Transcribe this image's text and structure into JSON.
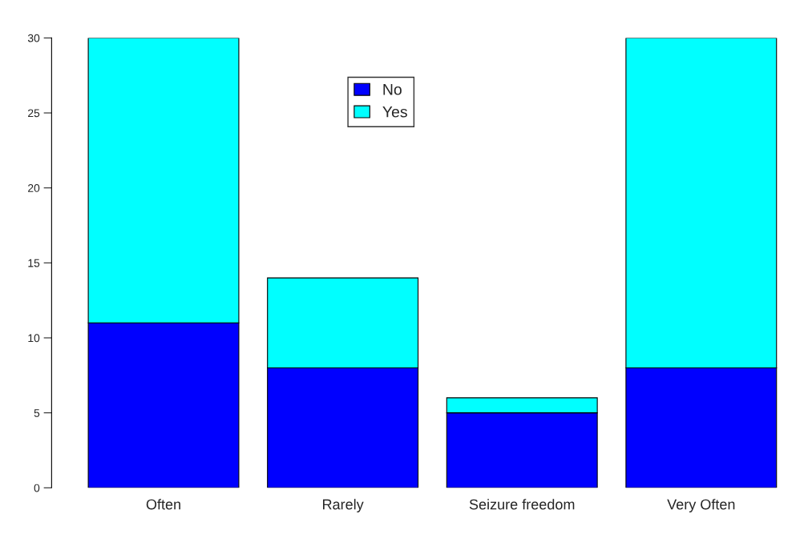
{
  "chart_data": {
    "type": "bar",
    "stacked": true,
    "categories": [
      "Often",
      "Rarely",
      "Seizure freedom",
      "Very Often"
    ],
    "series": [
      {
        "name": "No",
        "color": "#0000ff",
        "values": [
          11,
          8,
          5,
          8
        ]
      },
      {
        "name": "Yes",
        "color": "#00ffff",
        "values": [
          19,
          6,
          1,
          22
        ]
      }
    ],
    "ylim": [
      0,
      30
    ],
    "yticks": [
      0,
      5,
      10,
      15,
      20,
      25,
      30
    ],
    "grid": false,
    "legend": "top"
  }
}
